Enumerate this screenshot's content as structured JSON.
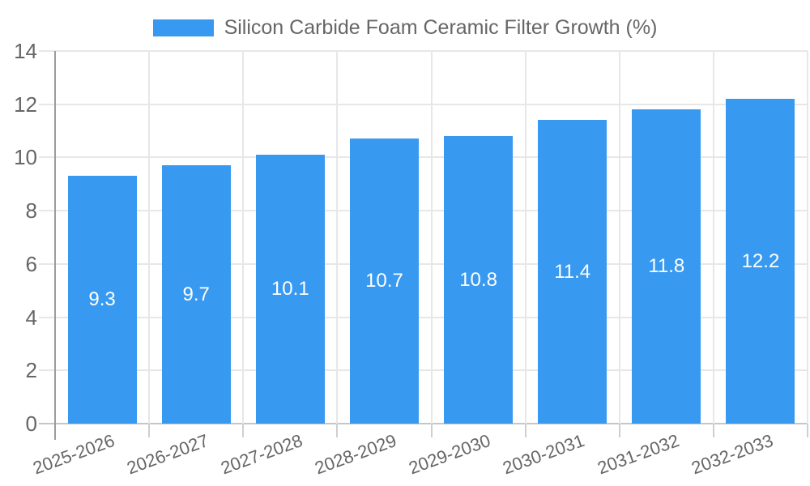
{
  "legend": {
    "label": "Silicon Carbide Foam Ceramic Filter Growth (%)",
    "swatch_color": "#3899f0"
  },
  "chart_data": {
    "type": "bar",
    "title": "Silicon Carbide Foam Ceramic Filter Growth (%)",
    "categories": [
      "2025-2026",
      "2026-2027",
      "2027-2028",
      "2028-2029",
      "2029-2030",
      "2030-2031",
      "2031-2032",
      "2032-2033"
    ],
    "values": [
      9.3,
      9.7,
      10.1,
      10.7,
      10.8,
      11.4,
      11.8,
      12.2
    ],
    "value_labels": [
      "9.3",
      "9.7",
      "10.1",
      "10.7",
      "10.8",
      "11.4",
      "11.8",
      "12.2"
    ],
    "xlabel": "",
    "ylabel": "",
    "ylim": [
      0,
      14
    ],
    "yticks": [
      0,
      2,
      4,
      6,
      8,
      10,
      12,
      14
    ],
    "grid": true,
    "legend_position": "top",
    "bar_color": "#3899f0",
    "value_label_color": "#ffffff",
    "axis_text_color": "#666666",
    "grid_color": "#e7e7e7",
    "axis_line_color": "#9c9c9c"
  }
}
